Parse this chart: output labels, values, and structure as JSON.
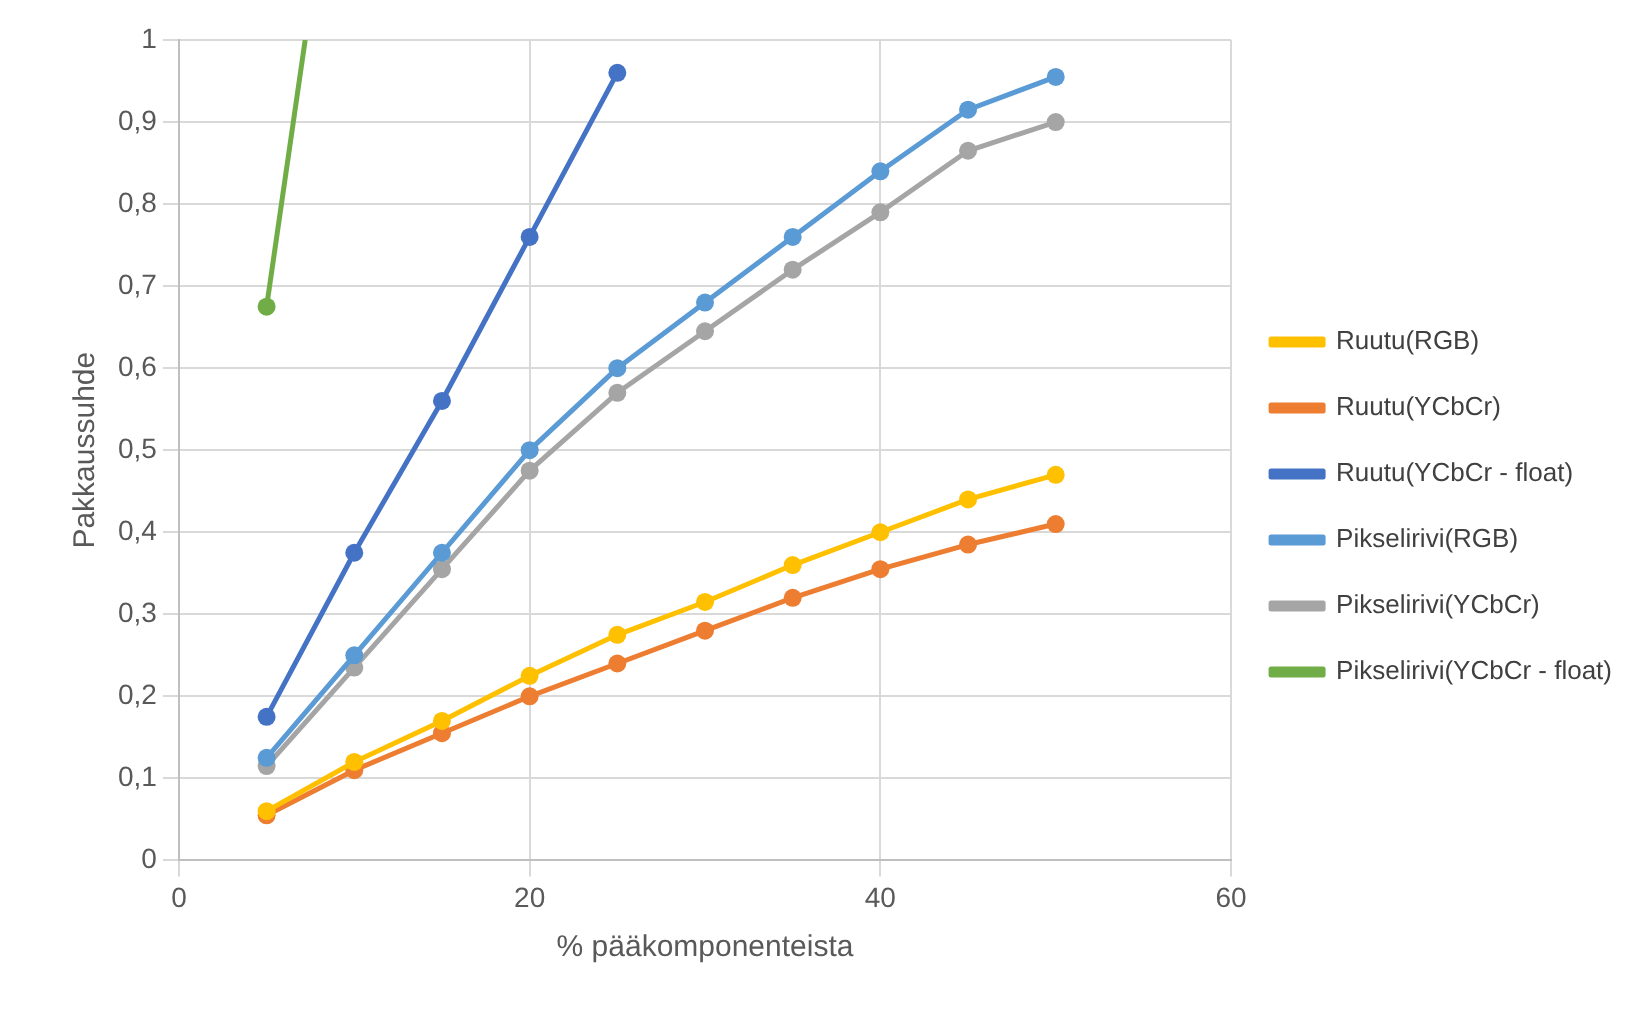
{
  "chart_data": {
    "type": "line",
    "xlabel": "% pääkomponenteista",
    "ylabel": "Pakkaussuhde",
    "x": [
      5,
      10,
      15,
      20,
      25,
      30,
      35,
      40,
      45,
      50
    ],
    "series": [
      {
        "name": "Ruutu(RGB)",
        "color": "#ffc000",
        "values": [
          0.06,
          0.12,
          0.17,
          0.225,
          0.275,
          0.315,
          0.36,
          0.4,
          0.44,
          0.47
        ]
      },
      {
        "name": "Ruutu(YCbCr)",
        "color": "#ed7d31",
        "values": [
          0.055,
          0.11,
          0.155,
          0.2,
          0.24,
          0.28,
          0.32,
          0.355,
          0.385,
          0.41
        ]
      },
      {
        "name": "Ruutu(YCbCr - float)",
        "color": "#4472c4",
        "x": [
          5,
          10,
          15,
          20,
          25
        ],
        "values": [
          0.175,
          0.375,
          0.56,
          0.76,
          0.96
        ]
      },
      {
        "name": "Pikselirivi(RGB)",
        "color": "#5b9bd5",
        "values": [
          0.125,
          0.25,
          0.375,
          0.5,
          0.6,
          0.68,
          0.76,
          0.84,
          0.915,
          0.955
        ]
      },
      {
        "name": "Pikselirivi(YCbCr)",
        "color": "#a5a5a5",
        "values": [
          0.115,
          0.235,
          0.355,
          0.475,
          0.57,
          0.645,
          0.72,
          0.79,
          0.865,
          0.9
        ]
      },
      {
        "name": "Pikselirivi(YCbCr - float)",
        "color": "#70ad47",
        "x": [
          5,
          7.2
        ],
        "values": [
          0.675,
          1
        ]
      }
    ],
    "xlim": [
      0,
      60
    ],
    "xticks": [
      0,
      20,
      40,
      60
    ],
    "ylim": [
      0,
      1
    ],
    "yticks": [
      0,
      {
        "value": 0.1,
        "label": "0,1"
      },
      {
        "value": 0.2,
        "label": "0,2"
      },
      {
        "value": 0.3,
        "label": "0,3"
      },
      {
        "value": 0.4,
        "label": "0,4"
      },
      {
        "value": 0.5,
        "label": "0,5"
      },
      {
        "value": 0.6,
        "label": "0,6"
      },
      {
        "value": 0.7,
        "label": "0,7"
      },
      {
        "value": 0.8,
        "label": "0,8"
      },
      {
        "value": 0.9,
        "label": "0,9"
      },
      1
    ],
    "grid": true,
    "legend": "right",
    "marker": "circle",
    "line_style": "solid"
  }
}
